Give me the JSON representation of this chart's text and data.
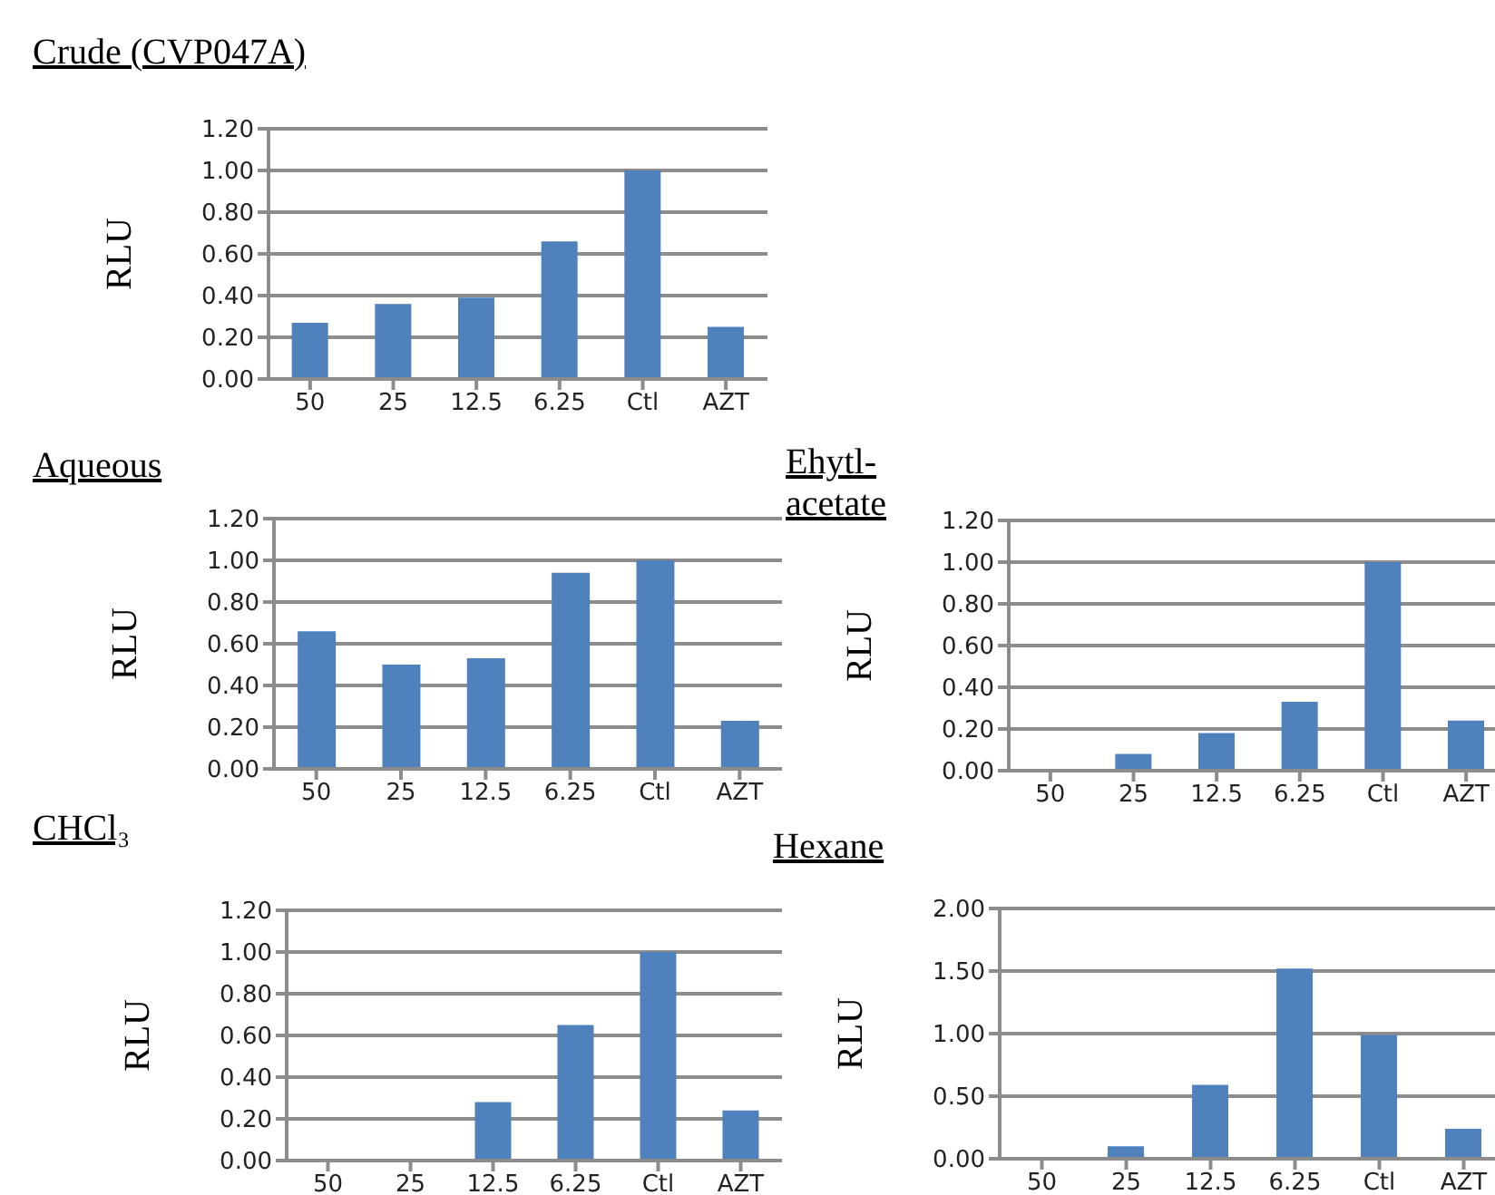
{
  "chart_data": [
    {
      "type": "bar",
      "title": "Crude (CVP047A)",
      "ylabel": "RLU",
      "categories": [
        "50",
        "25",
        "12.5",
        "6.25",
        "Ctl",
        "AZT"
      ],
      "values": [
        0.27,
        0.36,
        0.39,
        0.66,
        1.0,
        0.25
      ],
      "color": "#4f81bd",
      "ylim": [
        0,
        1.2
      ],
      "yticks": [
        {
          "value": 0,
          "label": "0.00"
        },
        {
          "value": 0.2,
          "label": "0.20"
        },
        {
          "value": 0.4,
          "label": "0.40"
        },
        {
          "value": 0.6,
          "label": "0.60"
        },
        {
          "value": 0.8,
          "label": "0.80"
        },
        {
          "value": 1,
          "label": "1.00"
        },
        {
          "value": 1.2,
          "label": "1.20"
        }
      ],
      "grid": "y"
    },
    {
      "type": "bar",
      "title": "Aqueous",
      "ylabel": "RLU",
      "categories": [
        "50",
        "25",
        "12.5",
        "6.25",
        "Ctl",
        "AZT"
      ],
      "values": [
        0.66,
        0.5,
        0.53,
        0.94,
        1.0,
        0.23
      ],
      "color": "#4f81bd",
      "ylim": [
        0,
        1.2
      ],
      "yticks": [
        {
          "value": 0,
          "label": "0.00"
        },
        {
          "value": 0.2,
          "label": "0.20"
        },
        {
          "value": 0.4,
          "label": "0.40"
        },
        {
          "value": 0.6,
          "label": "0.60"
        },
        {
          "value": 0.8,
          "label": "0.80"
        },
        {
          "value": 1,
          "label": "1.00"
        },
        {
          "value": 1.2,
          "label": "1.20"
        }
      ],
      "grid": "y"
    },
    {
      "type": "bar",
      "title": "Ehytl-acetate",
      "ylabel": "RLU",
      "categories": [
        "50",
        "25",
        "12.5",
        "6.25",
        "Ctl",
        "AZT"
      ],
      "values": [
        0,
        0.08,
        0.18,
        0.33,
        1.0,
        0.24
      ],
      "color": "#4f81bd",
      "ylim": [
        0,
        1.2
      ],
      "yticks": [
        {
          "value": 0,
          "label": "0.00"
        },
        {
          "value": 0.2,
          "label": "0.20"
        },
        {
          "value": 0.4,
          "label": "0.40"
        },
        {
          "value": 0.6,
          "label": "0.60"
        },
        {
          "value": 0.8,
          "label": "0.80"
        },
        {
          "value": 1,
          "label": "1.00"
        },
        {
          "value": 1.2,
          "label": "1.20"
        }
      ],
      "grid": "y"
    },
    {
      "type": "bar",
      "title": "CHCl₃",
      "ylabel": "RLU",
      "categories": [
        "50",
        "25",
        "12.5",
        "6.25",
        "Ctl",
        "AZT"
      ],
      "values": [
        0,
        0,
        0.28,
        0.65,
        1.0,
        0.24
      ],
      "color": "#4f81bd",
      "ylim": [
        0,
        1.2
      ],
      "yticks": [
        {
          "value": 0,
          "label": "0.00"
        },
        {
          "value": 0.2,
          "label": "0.20"
        },
        {
          "value": 0.4,
          "label": "0.40"
        },
        {
          "value": 0.6,
          "label": "0.60"
        },
        {
          "value": 0.8,
          "label": "0.80"
        },
        {
          "value": 1,
          "label": "1.00"
        },
        {
          "value": 1.2,
          "label": "1.20"
        }
      ],
      "grid": "y"
    },
    {
      "type": "bar",
      "title": "Hexane",
      "ylabel": "RLU",
      "categories": [
        "50",
        "25",
        "12.5",
        "6.25",
        "Ctl",
        "AZT"
      ],
      "values": [
        0,
        0.1,
        0.59,
        1.52,
        0.99,
        0.24
      ],
      "color": "#4f81bd",
      "ylim": [
        0,
        2
      ],
      "yticks": [
        {
          "value": 0,
          "label": "0.00"
        },
        {
          "value": 0.5,
          "label": "0.50"
        },
        {
          "value": 1,
          "label": "1.00"
        },
        {
          "value": 1.5,
          "label": "1.50"
        },
        {
          "value": 2,
          "label": "2.00"
        }
      ],
      "grid": "y"
    }
  ]
}
